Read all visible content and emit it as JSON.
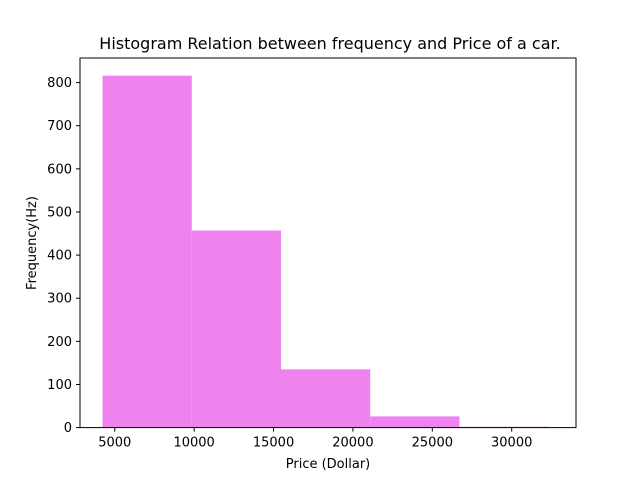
{
  "chart_data": {
    "type": "bar",
    "title": "Histogram Relation between frequency and Price of a car.",
    "xlabel": "Price (Dollar)",
    "ylabel": "Frequency(Hz)",
    "xlim": [
      2810,
      34050
    ],
    "ylim": [
      0,
      857
    ],
    "xticks": [
      5000,
      10000,
      15000,
      20000,
      25000,
      30000
    ],
    "yticks": [
      0,
      100,
      200,
      300,
      400,
      500,
      600,
      700,
      800
    ],
    "bins": [
      {
        "start": 4230,
        "end": 9850,
        "value": 816
      },
      {
        "start": 9850,
        "end": 15470,
        "value": 457
      },
      {
        "start": 15470,
        "end": 21090,
        "value": 135
      },
      {
        "start": 21090,
        "end": 26710,
        "value": 26
      },
      {
        "start": 26710,
        "end": 32330,
        "value": 2
      }
    ],
    "bar_color": "#ee82ee",
    "grid": false,
    "legend": "none"
  }
}
